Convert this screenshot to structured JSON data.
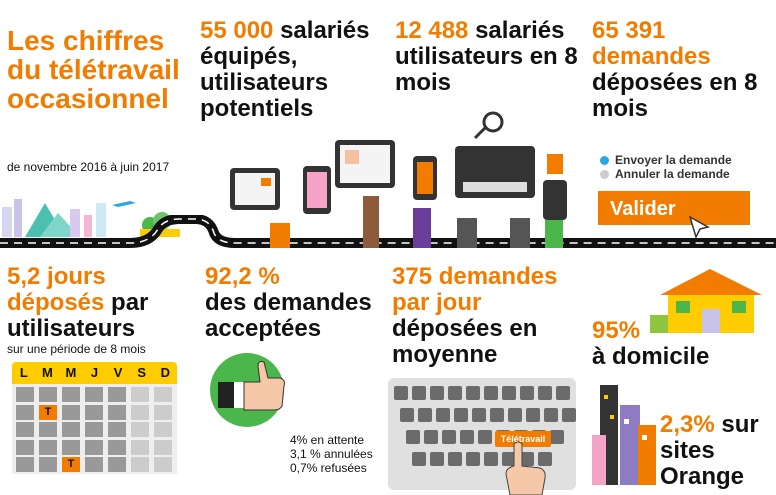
{
  "title": "Les chiffres du télétravail occasionnel",
  "subtitle": "de novembre 2016  à juin 2017",
  "stats": {
    "salaries_equipes": {
      "number": "55 000",
      "rest": " salariés équipés, utilisateurs potentiels"
    },
    "utilisateurs": {
      "number": "12 488",
      "rest": " salariés utilisateurs en 8 mois"
    },
    "demandes_deposees": {
      "number": "65 391",
      "highlight": " demandes",
      "rest": " déposées en 8 mois"
    },
    "jours_deposes": {
      "line1": "5,2 jours",
      "line2_orange": "déposés",
      "line2_black": " par",
      "line3": "utilisateurs",
      "sub": "sur une période de 8 mois"
    },
    "acceptees": {
      "number": "92,2 %",
      "rest": "des demandes acceptées"
    },
    "par_jour": {
      "number": "375 demandes par jour",
      "rest": "déposées en moyenne"
    },
    "domicile": {
      "number": "95%",
      "rest": "à domicile"
    },
    "sites": {
      "number": "2,3%",
      "rest1": " sur",
      "rest2": "sites",
      "rest3": "Orange"
    }
  },
  "other_statuses": [
    "4% en attente",
    "3,1 % annulées",
    "0,7% refusées"
  ],
  "form": {
    "option1": "Envoyer la demande",
    "option2": "Annuler la demande",
    "submit": "Valider"
  },
  "calendar": {
    "days": [
      "L",
      "M",
      "M",
      "J",
      "V",
      "S",
      "D"
    ],
    "marker": "T"
  },
  "keyboard_key": "Télétravail",
  "colors": {
    "accent": "#f27c00",
    "green": "#4bb64b",
    "yellow": "#ffcc00",
    "radio_blue": "#2aa7e1"
  },
  "icons": [
    "city-skyline-icon",
    "tablet-icon",
    "smartphone-icon",
    "laptop-icon",
    "magnifier-icon",
    "pencil-icon",
    "lightbulb-icon",
    "cursor-icon",
    "thumbs-up-icon",
    "house-icon",
    "office-buildings-icon",
    "hand-pointer-icon"
  ]
}
